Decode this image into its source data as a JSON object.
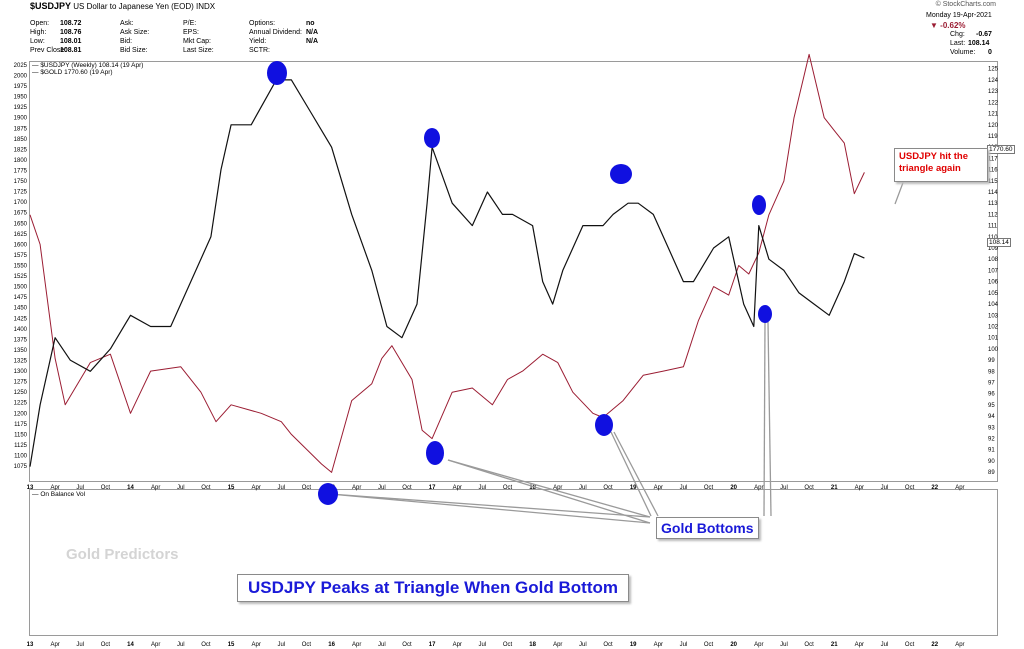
{
  "header": {
    "symbol": "$USDJPY",
    "description": "US Dollar to Japanese Yen (EOD)",
    "exchange": "INDX",
    "source": "© StockCharts.com",
    "date_line": "Monday  19-Apr-2021",
    "change_pct": "-0.62%",
    "chg_label": "Chg:",
    "chg_value": "-0.67",
    "last_label": "Last:",
    "last_value": "108.14",
    "volume_label": "Volume:",
    "volume_value": "0",
    "quote": [
      {
        "label": "Open:",
        "value": "108.72"
      },
      {
        "label": "High:",
        "value": "108.76"
      },
      {
        "label": "Low:",
        "value": "108.01"
      },
      {
        "label": "Prev Close:",
        "value": "108.81"
      }
    ],
    "quote_mid": [
      "Ask:",
      "Ask Size:",
      "Bid:",
      "Bid Size:"
    ],
    "quote_mid2": [
      "P/E:",
      "EPS:",
      "Mkt Cap:",
      "Last Size:"
    ],
    "quote_right": [
      {
        "label": "Options:",
        "value": "no"
      },
      {
        "label": "Annual Dividend:",
        "value": "N/A"
      },
      {
        "label": "Yield:",
        "value": "N/A"
      },
      {
        "label": "SCTR:",
        "value": ""
      }
    ]
  },
  "legend": {
    "usdjpy": "$USDJPY (Weekly) 108.14 (19 Apr)",
    "gold": "$GOLD 1770.60 (19 Apr)",
    "obv": "On Balance Vol"
  },
  "colors": {
    "usdjpy": "#111111",
    "gold": "#9b1d33",
    "marker": "#1010e0",
    "callout_text": "#1a1ad8",
    "red_text": "#e00000"
  },
  "annotations": {
    "gold_bottoms": "Gold Bottoms",
    "triangle_note": "USDJPY hit the triangle again",
    "headline": "USDJPY Peaks at Triangle When Gold Bottom",
    "watermark": "Gold Predictors"
  },
  "last_labels": {
    "gold": "1770.60",
    "usdjpy": "108.14"
  },
  "chart_data": {
    "type": "line",
    "x_ticks": [
      "13",
      "Apr",
      "Jul",
      "Oct",
      "14",
      "Apr",
      "Jul",
      "Oct",
      "15",
      "Apr",
      "Jul",
      "Oct",
      "16",
      "Apr",
      "Jul",
      "Oct",
      "17",
      "Apr",
      "Jul",
      "Oct",
      "18",
      "Apr",
      "Jul",
      "Oct",
      "19",
      "Apr",
      "Jul",
      "Oct",
      "20",
      "Apr",
      "Jul",
      "Oct",
      "21",
      "Apr",
      "Jul",
      "Oct",
      "22",
      "Apr"
    ],
    "left_axis": {
      "label": "$GOLD",
      "ticks": [
        2025,
        2000,
        1975,
        1950,
        1925,
        1900,
        1875,
        1850,
        1825,
        1800,
        1775,
        1750,
        1725,
        1700,
        1675,
        1650,
        1625,
        1600,
        1575,
        1550,
        1525,
        1500,
        1475,
        1450,
        1425,
        1400,
        1375,
        1350,
        1325,
        1300,
        1275,
        1250,
        1225,
        1200,
        1175,
        1150,
        1125,
        1100,
        1075
      ],
      "ylim": [
        1042,
        2032
      ]
    },
    "right_axis": {
      "label": "$USDJPY",
      "ticks": [
        125,
        124,
        123,
        122,
        121,
        120,
        119,
        118,
        117,
        116,
        115,
        114,
        113,
        112,
        111,
        110,
        109,
        108,
        107,
        106,
        105,
        104,
        103,
        102,
        101,
        100,
        99,
        98,
        97,
        96,
        95,
        94,
        93,
        92,
        91,
        90,
        89
      ],
      "ylim": [
        88.3,
        125.6
      ]
    },
    "series": [
      {
        "name": "$USDJPY",
        "axis": "right",
        "x": [
          2013.0,
          2013.1,
          2013.25,
          2013.4,
          2013.6,
          2013.8,
          2014.0,
          2014.2,
          2014.4,
          2014.6,
          2014.8,
          2014.9,
          2015.0,
          2015.2,
          2015.45,
          2015.6,
          2015.8,
          2016.0,
          2016.2,
          2016.4,
          2016.55,
          2016.7,
          2016.85,
          2016.95,
          2017.0,
          2017.2,
          2017.4,
          2017.55,
          2017.7,
          2017.8,
          2018.0,
          2018.1,
          2018.2,
          2018.3,
          2018.5,
          2018.7,
          2018.8,
          2018.95,
          2019.05,
          2019.2,
          2019.4,
          2019.5,
          2019.6,
          2019.8,
          2019.95,
          2020.1,
          2020.2,
          2020.25,
          2020.35,
          2020.5,
          2020.65,
          2020.8,
          2020.95,
          2021.0,
          2021.1,
          2021.2,
          2021.3
        ],
        "values": [
          89.5,
          95,
          101,
          99,
          98,
          100,
          103,
          102,
          102,
          106,
          110,
          116,
          120,
          120,
          124,
          124,
          121,
          118,
          112,
          107,
          102,
          101,
          104,
          113,
          118,
          113,
          111,
          114,
          112,
          112,
          111,
          106,
          104,
          107,
          111,
          111,
          112,
          113,
          113,
          112,
          108,
          106,
          106,
          109,
          110,
          104,
          102,
          111,
          108,
          107,
          105,
          104,
          103,
          104,
          106,
          108.5,
          108.1
        ]
      },
      {
        "name": "$GOLD",
        "axis": "left",
        "x": [
          2013.0,
          2013.1,
          2013.25,
          2013.35,
          2013.6,
          2013.8,
          2014.0,
          2014.2,
          2014.5,
          2014.7,
          2014.85,
          2015.0,
          2015.3,
          2015.5,
          2015.6,
          2015.9,
          2016.0,
          2016.2,
          2016.4,
          2016.5,
          2016.6,
          2016.8,
          2016.9,
          2017.0,
          2017.2,
          2017.4,
          2017.6,
          2017.75,
          2017.9,
          2018.1,
          2018.25,
          2018.4,
          2018.6,
          2018.7,
          2018.9,
          2019.1,
          2019.3,
          2019.5,
          2019.65,
          2019.8,
          2019.95,
          2020.05,
          2020.15,
          2020.25,
          2020.35,
          2020.5,
          2020.6,
          2020.7,
          2020.75,
          2020.9,
          2021.0,
          2021.1,
          2021.2,
          2021.3
        ],
        "values": [
          1670,
          1600,
          1330,
          1220,
          1320,
          1340,
          1200,
          1300,
          1310,
          1250,
          1180,
          1220,
          1200,
          1180,
          1150,
          1080,
          1060,
          1230,
          1270,
          1330,
          1360,
          1280,
          1160,
          1140,
          1250,
          1260,
          1220,
          1280,
          1300,
          1340,
          1320,
          1250,
          1200,
          1190,
          1230,
          1290,
          1300,
          1310,
          1420,
          1500,
          1480,
          1550,
          1530,
          1580,
          1670,
          1750,
          1900,
          2000,
          2050,
          1900,
          1870,
          1840,
          1720,
          1770.6
        ]
      }
    ]
  }
}
